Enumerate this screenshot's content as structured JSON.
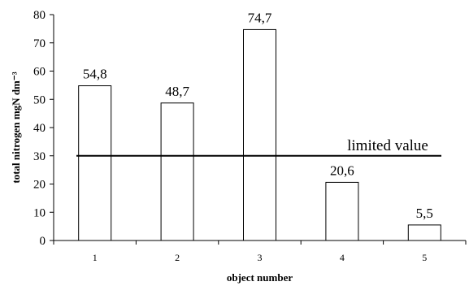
{
  "chart_data": {
    "type": "bar",
    "categories": [
      "1",
      "2",
      "3",
      "4",
      "5"
    ],
    "values": [
      54.8,
      48.7,
      74.7,
      20.6,
      5.5
    ],
    "data_labels": [
      "54,8",
      "48,7",
      "74,7",
      "20,6",
      "5,5"
    ],
    "title": "",
    "xlabel": "object number",
    "ylabel": "total nitrogen mgN dm⁻³",
    "ylim": [
      0,
      80
    ],
    "yticks": [
      0,
      10,
      20,
      30,
      40,
      50,
      60,
      70,
      80
    ],
    "grid": false,
    "bar_fill": "#ffffff",
    "bar_stroke": "#000000",
    "reference_line": {
      "value": 30,
      "label": "limited value",
      "color": "#000000"
    }
  }
}
